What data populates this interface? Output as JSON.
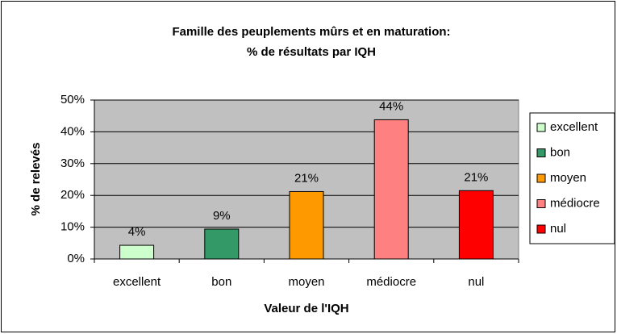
{
  "chart_data": {
    "type": "bar",
    "title": [
      "Famille des peuplements mûrs et en maturation:",
      "% de résultats par IQH"
    ],
    "x_label": "Valeur de l'IQH",
    "y_label": "% de relevés",
    "categories": [
      "excellent",
      "bon",
      "moyen",
      "médiocre",
      "nul"
    ],
    "values": [
      4.3,
      9.4,
      21.2,
      43.8,
      21.5
    ],
    "value_labels": [
      "4%",
      "9%",
      "21%",
      "44%",
      "21%"
    ],
    "colors": [
      "#ccffcc",
      "#339966",
      "#ff9900",
      "#ff8080",
      "#ff0000"
    ],
    "ylim": [
      0,
      50
    ],
    "yticks": [
      {
        "value": 0,
        "label": "0%"
      },
      {
        "value": 10,
        "label": "10%"
      },
      {
        "value": 20,
        "label": "20%"
      },
      {
        "value": 30,
        "label": "30%"
      },
      {
        "value": 40,
        "label": "40%"
      },
      {
        "value": 50,
        "label": "50%"
      }
    ],
    "grid": true,
    "legend": "right"
  }
}
